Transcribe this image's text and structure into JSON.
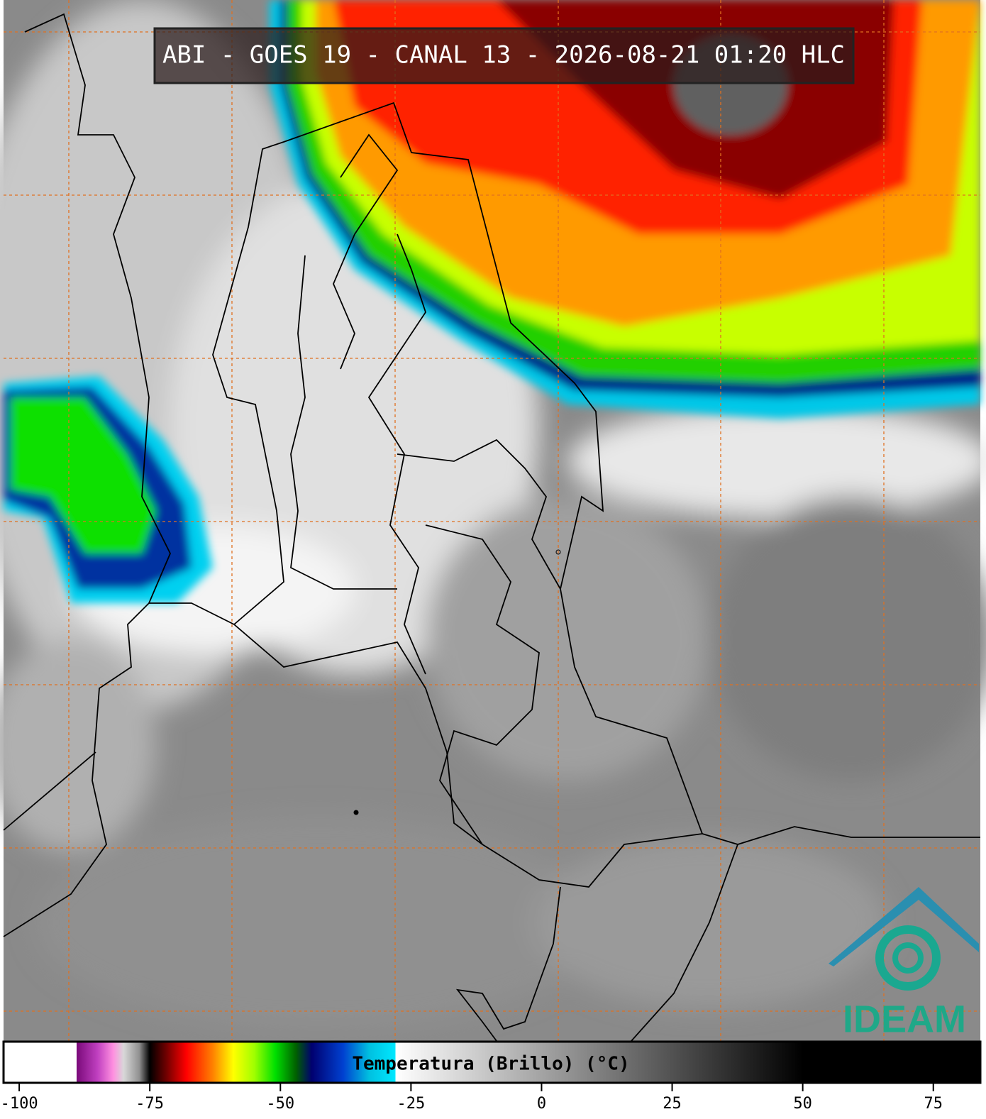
{
  "title": "ABI - GOES 19 - CANAL 13 - 2026-08-21 01:20 HLC",
  "logo": "IDEAM",
  "colorbar": {
    "label": "Temperatura (Brillo) (°C)",
    "lim": [
      -103,
      84
    ],
    "ticks": [
      -100,
      -75,
      -50,
      -25,
      0,
      25,
      50,
      75
    ],
    "stops": [
      {
        "value": -103,
        "color": "#ffffff"
      },
      {
        "value": -89,
        "color": "#ffffff"
      },
      {
        "value": -89,
        "color": "#7a0a7a"
      },
      {
        "value": -85,
        "color": "#c040c0"
      },
      {
        "value": -82,
        "color": "#ff90e0"
      },
      {
        "value": -80,
        "color": "#d8d8d8"
      },
      {
        "value": -77,
        "color": "#909090"
      },
      {
        "value": -75,
        "color": "#000000"
      },
      {
        "value": -72,
        "color": "#6a0000"
      },
      {
        "value": -68,
        "color": "#ff0000"
      },
      {
        "value": -63,
        "color": "#ff8000"
      },
      {
        "value": -59,
        "color": "#ffff00"
      },
      {
        "value": -55,
        "color": "#a0ff00"
      },
      {
        "value": -51,
        "color": "#00e000"
      },
      {
        "value": -47,
        "color": "#006000"
      },
      {
        "value": -44,
        "color": "#000070"
      },
      {
        "value": -38,
        "color": "#0040d0"
      },
      {
        "value": -33,
        "color": "#00c0e0"
      },
      {
        "value": -28,
        "color": "#00e8ff"
      },
      {
        "value": -28,
        "color": "#ffffff"
      },
      {
        "value": 50,
        "color": "#000000"
      },
      {
        "value": 84,
        "color": "#000000"
      }
    ]
  }
}
